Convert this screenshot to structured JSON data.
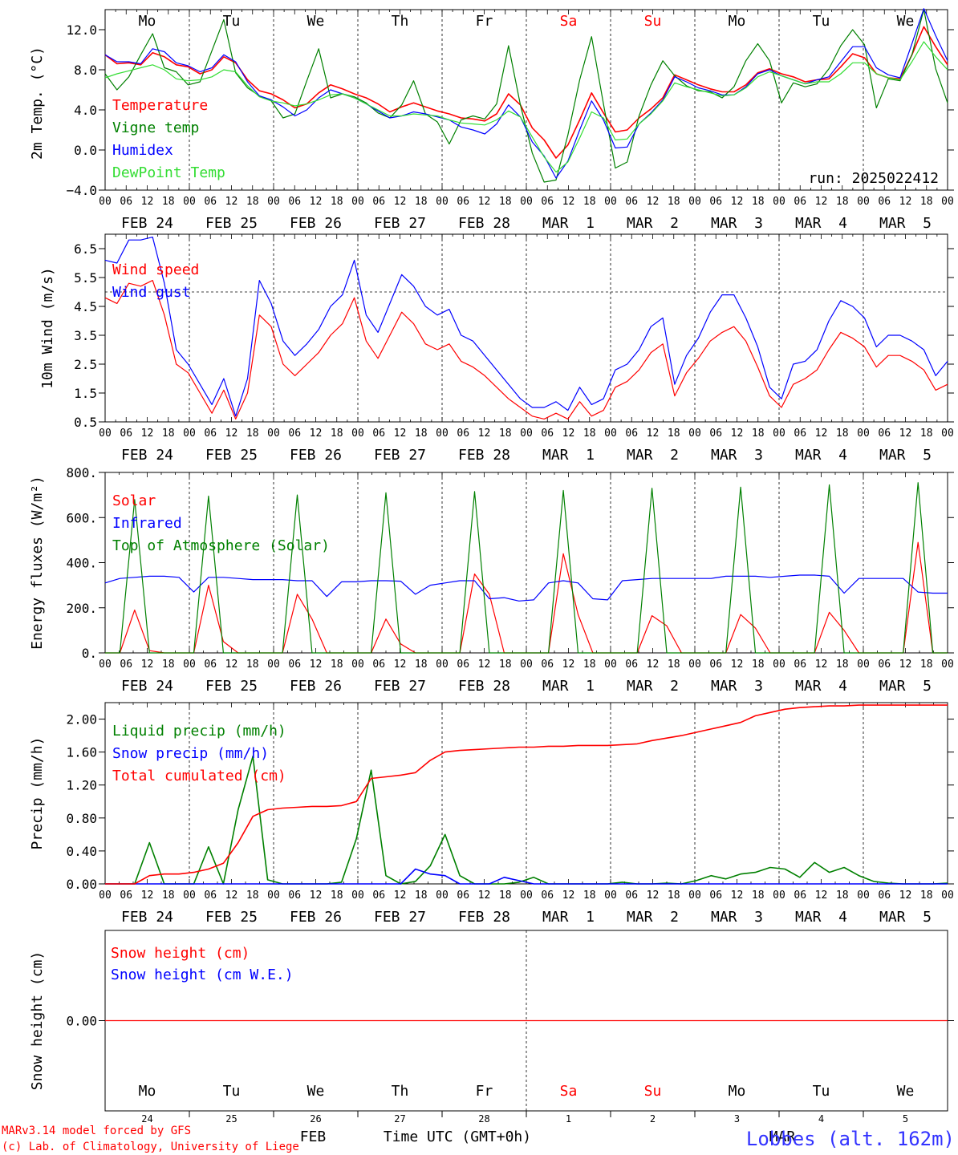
{
  "chart_data": [
    {
      "type": "line",
      "ylabel": "2m Temp. (°C)",
      "ylim": [
        -4,
        14
      ],
      "yticks": [
        -4,
        0,
        4,
        8,
        12
      ],
      "ytick_labels": [
        "−4.0",
        "0.0",
        "4.0",
        "8.0",
        "12.0"
      ],
      "grid": "vertical dashed at day boundaries",
      "legend_placement": "top-left",
      "run_label": "run: 2025022412",
      "x_start": "2025-02-24 00 UTC",
      "x_step_hours": 6,
      "series": [
        {
          "name": "Temperature",
          "color": "#ff0000",
          "values": [
            9.5,
            8.6,
            8.7,
            8.5,
            9.7,
            9.3,
            8.5,
            8.3,
            7.6,
            8.0,
            9.3,
            8.7,
            7.0,
            5.9,
            5.6,
            5.0,
            4.2,
            4.6,
            5.7,
            6.5,
            6.1,
            5.6,
            5.2,
            4.6,
            3.8,
            4.3,
            4.7,
            4.3,
            3.9,
            3.6,
            3.2,
            3.1,
            2.9,
            3.6,
            5.6,
            4.5,
            2.2,
            1.0,
            -0.8,
            0.5,
            3.0,
            5.7,
            3.7,
            1.8,
            2.0,
            3.2,
            4.1,
            5.2,
            7.5,
            7.0,
            6.5,
            6.1,
            5.8,
            5.8,
            6.5,
            7.7,
            8.1,
            7.6,
            7.3,
            6.8,
            7.0,
            7.1,
            8.3,
            9.6,
            9.2,
            7.6,
            7.2,
            7.1,
            9.5,
            12.3,
            10.3,
            8.5
          ]
        },
        {
          "name": "Vigne temp",
          "color": "#008000",
          "values": [
            7.6,
            6.0,
            7.3,
            9.5,
            11.6,
            8.2,
            7.8,
            6.5,
            6.8,
            9.9,
            13.0,
            7.7,
            6.2,
            5.4,
            4.9,
            3.2,
            3.6,
            6.9,
            10.1,
            5.2,
            5.6,
            5.3,
            4.7,
            3.7,
            3.2,
            4.5,
            6.9,
            3.6,
            2.8,
            0.6,
            3.0,
            3.4,
            3.1,
            4.6,
            10.4,
            4.5,
            -0.3,
            -3.2,
            -3.0,
            1.5,
            7.0,
            11.3,
            4.6,
            -1.8,
            -1.2,
            3.4,
            6.5,
            8.9,
            7.4,
            6.4,
            5.9,
            5.8,
            5.2,
            6.3,
            8.9,
            10.6,
            8.9,
            4.7,
            6.7,
            6.3,
            6.6,
            8.1,
            10.4,
            12.0,
            10.5,
            4.2,
            7.1,
            6.9,
            9.5,
            14.0,
            8.1,
            4.7
          ]
        },
        {
          "name": "Humidex",
          "color": "#0000ff",
          "values": [
            9.5,
            8.8,
            8.8,
            8.6,
            10.1,
            9.8,
            8.7,
            8.4,
            7.8,
            8.2,
            9.5,
            8.8,
            6.8,
            5.4,
            5.0,
            4.3,
            3.4,
            4.0,
            5.2,
            6.0,
            5.6,
            5.2,
            4.6,
            3.9,
            3.2,
            3.4,
            3.8,
            3.6,
            3.3,
            3.0,
            2.3,
            2.0,
            1.6,
            2.6,
            4.5,
            3.3,
            0.8,
            -0.6,
            -2.8,
            -1.1,
            2.0,
            4.9,
            3.0,
            0.2,
            0.3,
            2.6,
            3.7,
            5.0,
            7.3,
            6.8,
            6.2,
            5.9,
            5.5,
            5.5,
            6.3,
            7.6,
            8.0,
            7.4,
            7.0,
            6.6,
            7.0,
            7.3,
            8.8,
            10.3,
            10.3,
            8.2,
            7.5,
            7.2,
            10.6,
            14.1,
            11.4,
            8.9
          ]
        },
        {
          "name": "DewPoint Temp",
          "color": "#33dd33",
          "values": [
            7.2,
            7.6,
            7.9,
            8.2,
            8.5,
            8.0,
            7.1,
            6.9,
            7.0,
            7.3,
            8.0,
            7.8,
            6.4,
            5.3,
            4.9,
            4.7,
            4.4,
            4.6,
            5.0,
            5.5,
            5.6,
            5.2,
            4.6,
            4.0,
            3.4,
            3.4,
            3.6,
            3.5,
            3.4,
            3.0,
            2.7,
            2.6,
            2.5,
            3.0,
            3.9,
            3.3,
            1.3,
            -0.7,
            -2.2,
            -1.2,
            1.2,
            3.8,
            3.2,
            1.0,
            1.1,
            2.6,
            3.6,
            4.9,
            6.7,
            6.3,
            6.0,
            5.7,
            5.4,
            5.5,
            6.2,
            7.3,
            7.8,
            7.4,
            7.0,
            6.6,
            6.8,
            6.8,
            7.6,
            8.7,
            8.7,
            7.6,
            7.2,
            7.0,
            8.8,
            10.8,
            9.3,
            8.0
          ]
        }
      ]
    },
    {
      "type": "line",
      "ylabel": "10m Wind (m/s)",
      "ylim": [
        0.5,
        7.0
      ],
      "yticks": [
        0.5,
        1.5,
        2.5,
        3.5,
        4.5,
        5.5,
        6.5
      ],
      "ytick_labels": [
        "0.5",
        "1.5",
        "2.5",
        "3.5",
        "4.5",
        "5.5",
        "6.5"
      ],
      "reference_line": 5.0,
      "legend_placement": "top-left",
      "series": [
        {
          "name": "Wind speed",
          "color": "#ff0000",
          "values": [
            4.8,
            4.6,
            5.3,
            5.2,
            5.4,
            4.2,
            2.5,
            2.2,
            1.5,
            0.8,
            1.6,
            0.6,
            1.5,
            4.2,
            3.8,
            2.5,
            2.1,
            2.5,
            2.9,
            3.5,
            3.9,
            4.8,
            3.3,
            2.7,
            3.5,
            4.3,
            3.9,
            3.2,
            3.0,
            3.2,
            2.6,
            2.4,
            2.1,
            1.7,
            1.3,
            1.0,
            0.7,
            0.6,
            0.8,
            0.6,
            1.2,
            0.7,
            0.9,
            1.7,
            1.9,
            2.3,
            2.9,
            3.2,
            1.4,
            2.2,
            2.7,
            3.3,
            3.6,
            3.8,
            3.3,
            2.4,
            1.4,
            1.0,
            1.8,
            2.0,
            2.3,
            3.0,
            3.6,
            3.4,
            3.1,
            2.4,
            2.8,
            2.8,
            2.6,
            2.3,
            1.6,
            1.8
          ]
        },
        {
          "name": "Wind gust",
          "color": "#0000ff",
          "values": [
            6.1,
            6.0,
            6.8,
            6.8,
            6.9,
            5.3,
            3.0,
            2.5,
            1.8,
            1.1,
            2.0,
            0.7,
            2.0,
            5.4,
            4.6,
            3.3,
            2.8,
            3.2,
            3.7,
            4.5,
            4.9,
            6.1,
            4.2,
            3.6,
            4.6,
            5.6,
            5.2,
            4.5,
            4.2,
            4.4,
            3.5,
            3.3,
            2.8,
            2.3,
            1.8,
            1.3,
            1.0,
            1.0,
            1.2,
            0.9,
            1.7,
            1.1,
            1.3,
            2.3,
            2.5,
            3.0,
            3.8,
            4.1,
            1.8,
            2.8,
            3.4,
            4.3,
            4.9,
            4.9,
            4.1,
            3.1,
            1.7,
            1.3,
            2.5,
            2.6,
            3.0,
            4.0,
            4.7,
            4.5,
            4.1,
            3.1,
            3.5,
            3.5,
            3.3,
            3.0,
            2.1,
            2.6
          ]
        }
      ]
    },
    {
      "type": "line",
      "ylabel": "Energy fluxes (W/m²)",
      "ylim": [
        0,
        800
      ],
      "yticks": [
        0,
        200,
        400,
        600,
        800
      ],
      "ytick_labels": [
        "0.",
        "200.",
        "400.",
        "600.",
        "800."
      ],
      "legend_placement": "top-left",
      "series": [
        {
          "name": "Solar",
          "color": "#ff0000",
          "values": [
            0,
            0,
            190,
            10,
            0,
            0,
            0,
            300,
            50,
            0,
            0,
            0,
            0,
            260,
            150,
            0,
            0,
            0,
            0,
            150,
            40,
            0,
            0,
            0,
            0,
            350,
            260,
            0,
            0,
            0,
            0,
            440,
            170,
            0,
            0,
            0,
            0,
            165,
            120,
            0,
            0,
            0,
            0,
            170,
            110,
            0,
            0,
            0,
            0,
            180,
            100,
            0,
            0,
            0,
            0,
            490,
            0,
            0
          ]
        },
        {
          "name": "Infrared",
          "color": "#0000ff",
          "values": [
            310,
            330,
            335,
            340,
            340,
            335,
            270,
            335,
            335,
            330,
            325,
            325,
            325,
            320,
            320,
            250,
            315,
            315,
            320,
            320,
            318,
            260,
            300,
            310,
            320,
            320,
            240,
            245,
            230,
            235,
            310,
            320,
            310,
            240,
            235,
            320,
            325,
            330,
            330,
            330,
            330,
            330,
            340,
            340,
            340,
            335,
            340,
            345,
            345,
            340,
            265,
            330,
            330,
            330,
            330,
            270,
            265,
            265
          ]
        },
        {
          "name": "Top of Atmosphere (Solar)",
          "color": "#008000",
          "values": [
            0,
            0,
            680,
            0,
            0,
            0,
            0,
            695,
            0,
            0,
            0,
            0,
            0,
            700,
            0,
            0,
            0,
            0,
            0,
            710,
            0,
            0,
            0,
            0,
            0,
            715,
            0,
            0,
            0,
            0,
            0,
            720,
            0,
            0,
            0,
            0,
            0,
            730,
            0,
            0,
            0,
            0,
            0,
            735,
            0,
            0,
            0,
            0,
            0,
            745,
            0,
            0,
            0,
            0,
            0,
            755,
            0,
            0
          ]
        }
      ]
    },
    {
      "type": "line",
      "ylabel": "Precip (mm/h)",
      "ylim": [
        0,
        2.2
      ],
      "yticks": [
        0,
        0.4,
        0.8,
        1.2,
        1.6,
        2.0
      ],
      "ytick_labels": [
        "0.00",
        "0.40",
        "0.80",
        "1.20",
        "1.60",
        "2.00"
      ],
      "legend_placement": "top-left",
      "series": [
        {
          "name": "Liquid precip (mm/h)",
          "color": "#008000",
          "values": [
            0,
            0,
            0,
            0.5,
            0,
            0,
            0,
            0.45,
            0,
            0.9,
            1.55,
            0.05,
            0,
            0,
            0,
            0,
            0.02,
            0.55,
            1.38,
            0.1,
            0,
            0.03,
            0.22,
            0.6,
            0.1,
            0,
            0,
            0,
            0.02,
            0.08,
            0,
            0,
            0,
            0,
            0,
            0.02,
            0,
            0,
            0.01,
            0,
            0.04,
            0.1,
            0.06,
            0.12,
            0.14,
            0.2,
            0.18,
            0.08,
            0.26,
            0.14,
            0.2,
            0.1,
            0.03,
            0.01,
            0,
            0,
            0,
            0.01
          ]
        },
        {
          "name": "Snow precip (mm/h)",
          "color": "#0000ff",
          "values": [
            0,
            0,
            0,
            0,
            0,
            0,
            0,
            0,
            0,
            0,
            0,
            0,
            0,
            0,
            0,
            0,
            0,
            0,
            0,
            0,
            0,
            0.18,
            0.12,
            0.1,
            0,
            0,
            0,
            0.08,
            0.04,
            0,
            0,
            0,
            0,
            0,
            0,
            0,
            0,
            0,
            0,
            0,
            0,
            0,
            0,
            0,
            0,
            0,
            0,
            0,
            0,
            0,
            0,
            0,
            0,
            0,
            0,
            0,
            0,
            0
          ]
        },
        {
          "name": "Total cumulated (cm)",
          "color": "#ff0000",
          "values": [
            0,
            0,
            0,
            0.1,
            0.12,
            0.12,
            0.14,
            0.18,
            0.25,
            0.5,
            0.82,
            0.9,
            0.92,
            0.93,
            0.94,
            0.94,
            0.95,
            1.0,
            1.28,
            1.3,
            1.32,
            1.35,
            1.5,
            1.6,
            1.62,
            1.63,
            1.64,
            1.65,
            1.66,
            1.66,
            1.67,
            1.67,
            1.68,
            1.68,
            1.68,
            1.69,
            1.7,
            1.74,
            1.77,
            1.8,
            1.84,
            1.88,
            1.92,
            1.96,
            2.04,
            2.08,
            2.12,
            2.14,
            2.15,
            2.16,
            2.16,
            2.17,
            2.17,
            2.17,
            2.17,
            2.17,
            2.17,
            2.17
          ]
        }
      ]
    },
    {
      "type": "line",
      "ylabel": "Snow height (cm)",
      "ylim": [
        -1,
        1
      ],
      "yticks": [
        0
      ],
      "ytick_labels": [
        "0.00"
      ],
      "legend_placement": "top-left",
      "series": [
        {
          "name": "Snow height (cm)",
          "color": "#ff0000",
          "values": [
            0,
            0
          ]
        },
        {
          "name": "Snow height (cm W.E.)",
          "color": "#0000ff",
          "values": []
        }
      ]
    }
  ],
  "axis": {
    "hour_labels": [
      "00",
      "06",
      "12",
      "18"
    ],
    "final_hour_label": "00",
    "date_labels": [
      "FEB 24",
      "FEB 25",
      "FEB 26",
      "FEB 27",
      "FEB 28",
      "MAR  1",
      "MAR  2",
      "MAR  3",
      "MAR  4",
      "MAR  5"
    ],
    "weekdays": [
      {
        "label": "Mo",
        "color": "#000000"
      },
      {
        "label": "Tu",
        "color": "#000000"
      },
      {
        "label": "We",
        "color": "#000000"
      },
      {
        "label": "Th",
        "color": "#000000"
      },
      {
        "label": "Fr",
        "color": "#000000"
      },
      {
        "label": "Sa",
        "color": "#ff0000"
      },
      {
        "label": "Su",
        "color": "#ff0000"
      },
      {
        "label": "Mo",
        "color": "#000000"
      },
      {
        "label": "Tu",
        "color": "#000000"
      },
      {
        "label": "We",
        "color": "#000000"
      }
    ],
    "day_numbers": [
      "24",
      "25",
      "26",
      "27",
      "28",
      "1",
      "2",
      "3",
      "4",
      "5"
    ],
    "month_labels": [
      "FEB",
      "MAR"
    ],
    "xlabel": "Time UTC (GMT+0h)"
  },
  "footer": {
    "credit_line1": "MARv3.14 model forced by GFS",
    "credit_line2": "(c) Lab. of Climatology, University of Liege",
    "station": "Lobbes (alt. 162m)"
  },
  "colors": {
    "accent_red": "#ff0000",
    "accent_blue": "#0000ff",
    "accent_green": "#008000",
    "light_green": "#33dd33"
  }
}
